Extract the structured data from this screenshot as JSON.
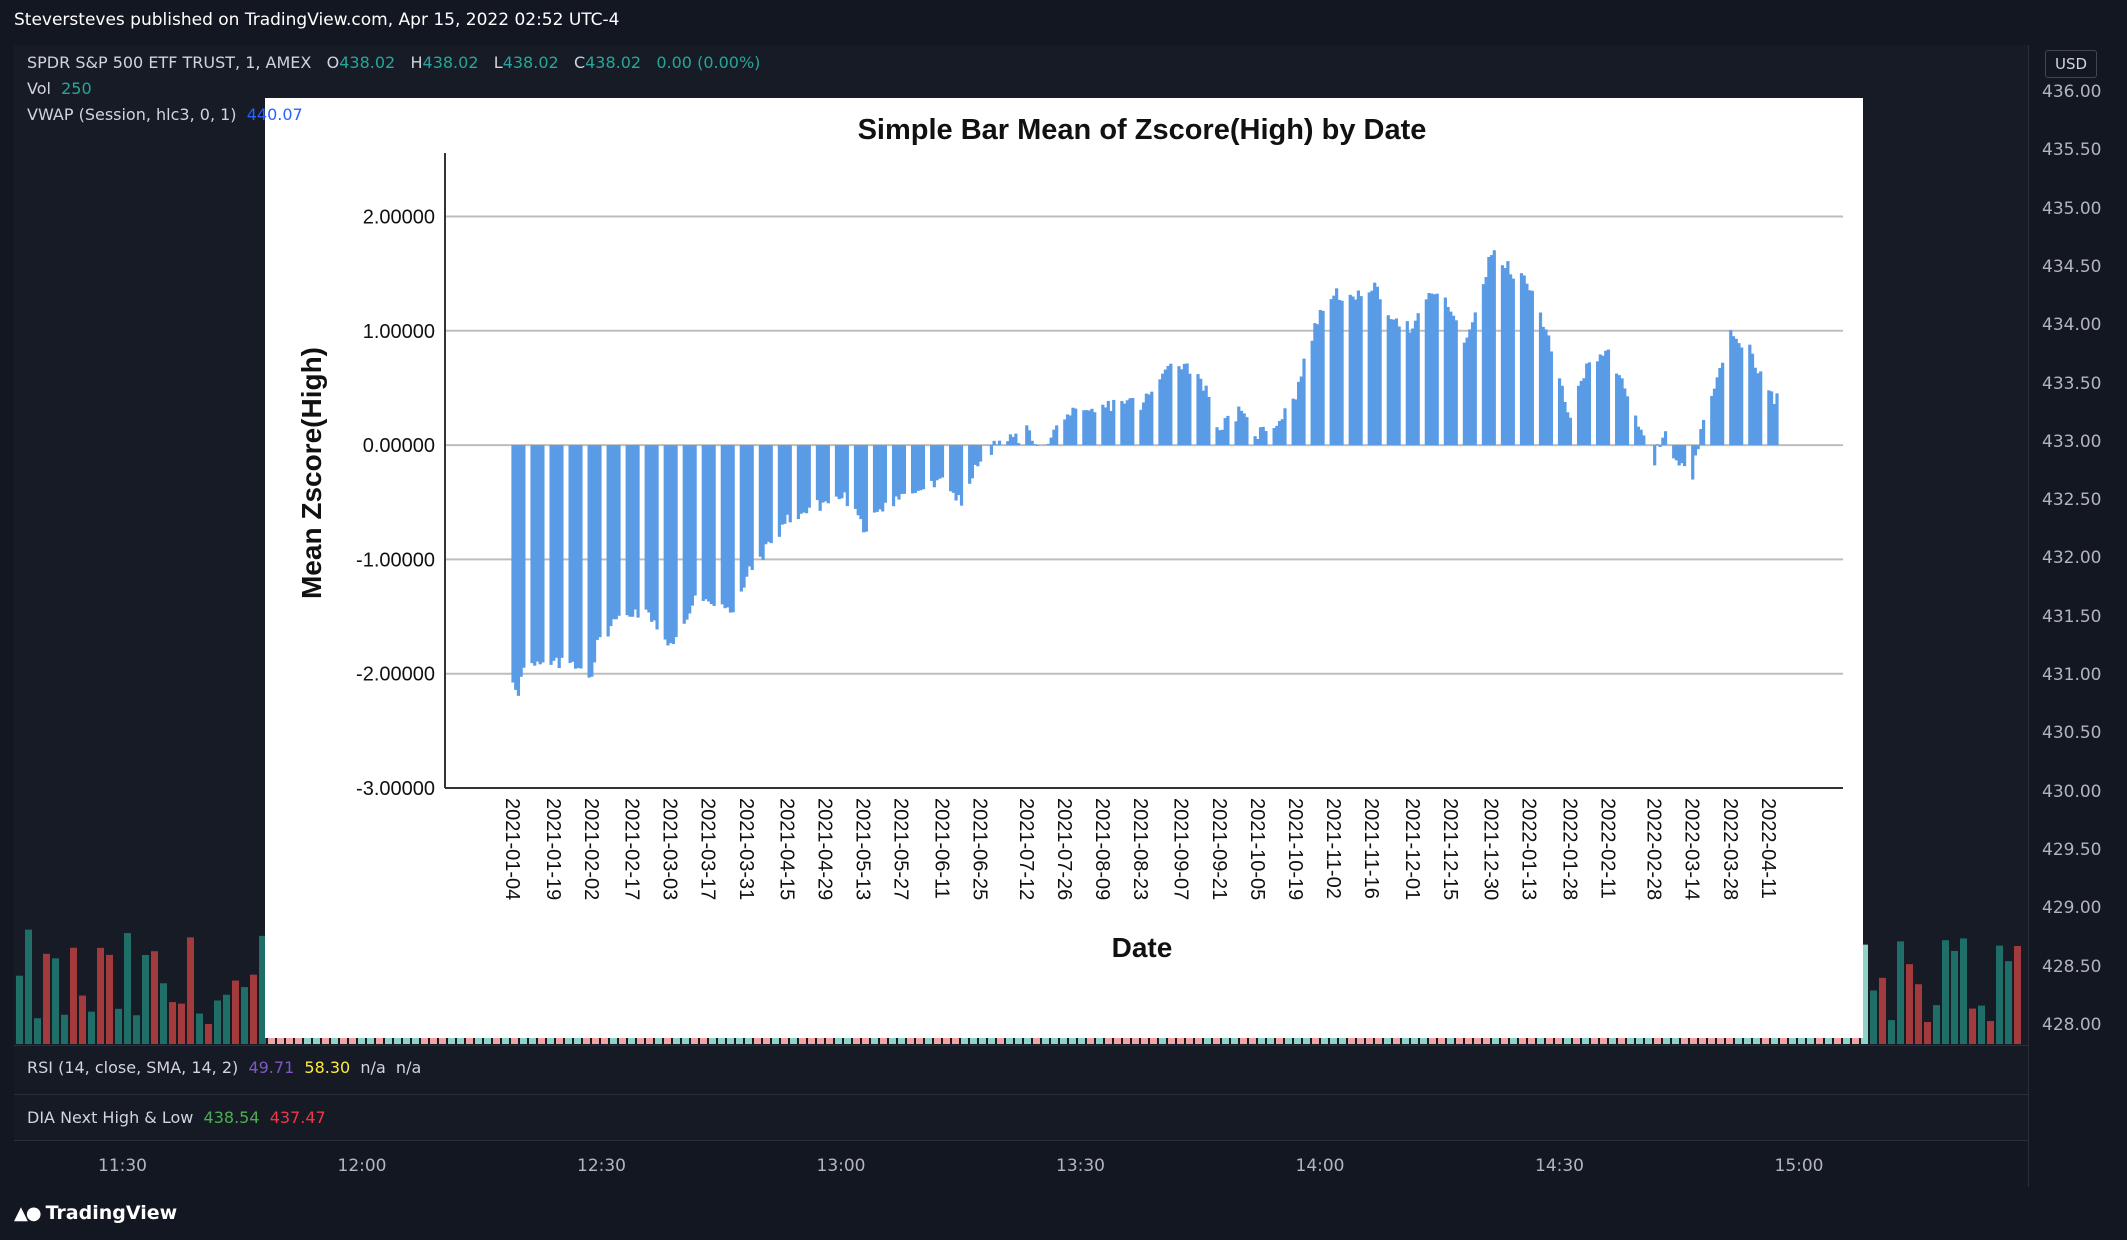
{
  "header": {
    "published_by": "Steversteves published on TradingView.com, Apr 15, 2022 02:52 UTC-4"
  },
  "legend": {
    "symbol": "SPDR S&P 500 ETF TRUST, 1, AMEX",
    "o_label": "O",
    "o_value": "438.02",
    "h_label": "H",
    "h_value": "438.02",
    "l_label": "L",
    "l_value": "438.02",
    "c_label": "C",
    "c_value": "438.02",
    "change": "0.00 (0.00%)",
    "vol_label": "Vol",
    "vol_value": "250",
    "vwap_label": "VWAP (Session, hlc3, 0, 1)",
    "vwap_value": "440.07"
  },
  "price_scale": {
    "currency": "USD",
    "labels": [
      "436.00",
      "435.50",
      "435.00",
      "434.50",
      "434.00",
      "433.50",
      "433.00",
      "432.50",
      "432.00",
      "431.50",
      "431.00",
      "430.50",
      "430.00",
      "429.50",
      "429.00",
      "428.50",
      "428.00"
    ]
  },
  "rsi": {
    "label": "RSI (14, close, SMA, 14, 2)",
    "value1": "49.71",
    "value2": "58.30",
    "value3": "n/a",
    "value4": "n/a"
  },
  "dia": {
    "label": "DIA Next High & Low",
    "high": "438.54",
    "low": "437.47"
  },
  "time_axis": {
    "labels": [
      "11:30",
      "12:00",
      "12:30",
      "13:00",
      "13:30",
      "14:00",
      "14:30",
      "15:00"
    ]
  },
  "footer": {
    "brand": "TradingView"
  },
  "colors": {
    "background": "#131722",
    "up": "#26a69a",
    "down": "#ef5350",
    "vwap": "#2962ff",
    "bar_fill": "#5a9be6"
  },
  "chart_data": {
    "type": "bar",
    "title": "Simple Bar Mean of Zscore(High) by Date",
    "xlabel": "Date",
    "ylabel": "Mean Zscore(High)",
    "ylim": [
      -3,
      2.5
    ],
    "yticks": [
      "2.00000",
      "1.00000",
      "0.00000",
      "-1.00000",
      "-2.00000",
      "-3.00000"
    ],
    "grid": true,
    "date_ticks": [
      "2021-01-04",
      "2021-01-19",
      "2021-02-02",
      "2021-02-17",
      "2021-03-03",
      "2021-03-17",
      "2021-03-31",
      "2021-04-15",
      "2021-04-29",
      "2021-05-13",
      "2021-05-27",
      "2021-06-11",
      "2021-06-25",
      "2021-07-12",
      "2021-07-26",
      "2021-08-09",
      "2021-08-23",
      "2021-09-07",
      "2021-09-21",
      "2021-10-05",
      "2021-10-19",
      "2021-11-02",
      "2021-11-16",
      "2021-12-01",
      "2021-12-15",
      "2021-12-30",
      "2022-01-13",
      "2022-01-28",
      "2022-02-11",
      "2022-02-28",
      "2022-03-14",
      "2022-03-28",
      "2022-04-11"
    ],
    "anchors": [
      [
        "2021-01-04",
        -2.05
      ],
      [
        "2021-01-06",
        -2.15
      ],
      [
        "2021-01-08",
        -1.95
      ],
      [
        "2021-01-19",
        -1.92
      ],
      [
        "2021-01-26",
        -1.9
      ],
      [
        "2021-02-02",
        -2.0
      ],
      [
        "2021-02-04",
        -1.75
      ],
      [
        "2021-02-10",
        -1.55
      ],
      [
        "2021-02-17",
        -1.45
      ],
      [
        "2021-02-24",
        -1.5
      ],
      [
        "2021-03-01",
        -1.7
      ],
      [
        "2021-03-04",
        -1.75
      ],
      [
        "2021-03-09",
        -1.55
      ],
      [
        "2021-03-12",
        -1.3
      ],
      [
        "2021-03-17",
        -1.35
      ],
      [
        "2021-03-22",
        -1.4
      ],
      [
        "2021-03-26",
        -1.5
      ],
      [
        "2021-03-31",
        -1.15
      ],
      [
        "2021-04-06",
        -0.95
      ],
      [
        "2021-04-15",
        -0.65
      ],
      [
        "2021-04-22",
        -0.58
      ],
      [
        "2021-04-29",
        -0.5
      ],
      [
        "2021-05-06",
        -0.45
      ],
      [
        "2021-05-10",
        -0.6
      ],
      [
        "2021-05-13",
        -0.75
      ],
      [
        "2021-05-18",
        -0.55
      ],
      [
        "2021-05-27",
        -0.45
      ],
      [
        "2021-06-04",
        -0.38
      ],
      [
        "2021-06-11",
        -0.33
      ],
      [
        "2021-06-18",
        -0.48
      ],
      [
        "2021-06-25",
        -0.12
      ],
      [
        "2021-07-02",
        0.03
      ],
      [
        "2021-07-08",
        0.06
      ],
      [
        "2021-07-12",
        0.12
      ],
      [
        "2021-07-19",
        -0.03
      ],
      [
        "2021-07-26",
        0.28
      ],
      [
        "2021-08-02",
        0.25
      ],
      [
        "2021-08-09",
        0.32
      ],
      [
        "2021-08-16",
        0.4
      ],
      [
        "2021-08-23",
        0.35
      ],
      [
        "2021-08-30",
        0.55
      ],
      [
        "2021-09-03",
        0.75
      ],
      [
        "2021-09-07",
        0.72
      ],
      [
        "2021-09-14",
        0.6
      ],
      [
        "2021-09-21",
        0.15
      ],
      [
        "2021-09-28",
        0.28
      ],
      [
        "2021-10-05",
        0.1
      ],
      [
        "2021-10-12",
        0.2
      ],
      [
        "2021-10-19",
        0.45
      ],
      [
        "2021-10-26",
        1.05
      ],
      [
        "2021-11-02",
        1.35
      ],
      [
        "2021-11-09",
        1.25
      ],
      [
        "2021-11-16",
        1.4
      ],
      [
        "2021-11-23",
        1.15
      ],
      [
        "2021-12-01",
        1.0
      ],
      [
        "2021-12-08",
        1.35
      ],
      [
        "2021-12-15",
        1.2
      ],
      [
        "2021-12-20",
        0.85
      ],
      [
        "2021-12-30",
        1.68
      ],
      [
        "2022-01-05",
        1.55
      ],
      [
        "2022-01-13",
        1.4
      ],
      [
        "2022-01-20",
        0.9
      ],
      [
        "2022-01-28",
        0.25
      ],
      [
        "2022-02-04",
        0.75
      ],
      [
        "2022-02-11",
        0.85
      ],
      [
        "2022-02-18",
        0.4
      ],
      [
        "2022-02-24",
        0.05
      ],
      [
        "2022-02-28",
        -0.12
      ],
      [
        "2022-03-04",
        0.15
      ],
      [
        "2022-03-08",
        -0.15
      ],
      [
        "2022-03-14",
        -0.28
      ],
      [
        "2022-03-18",
        0.28
      ],
      [
        "2022-03-28",
        0.95
      ],
      [
        "2022-04-04",
        0.85
      ],
      [
        "2022-04-11",
        0.45
      ],
      [
        "2022-04-14",
        0.4
      ]
    ]
  }
}
